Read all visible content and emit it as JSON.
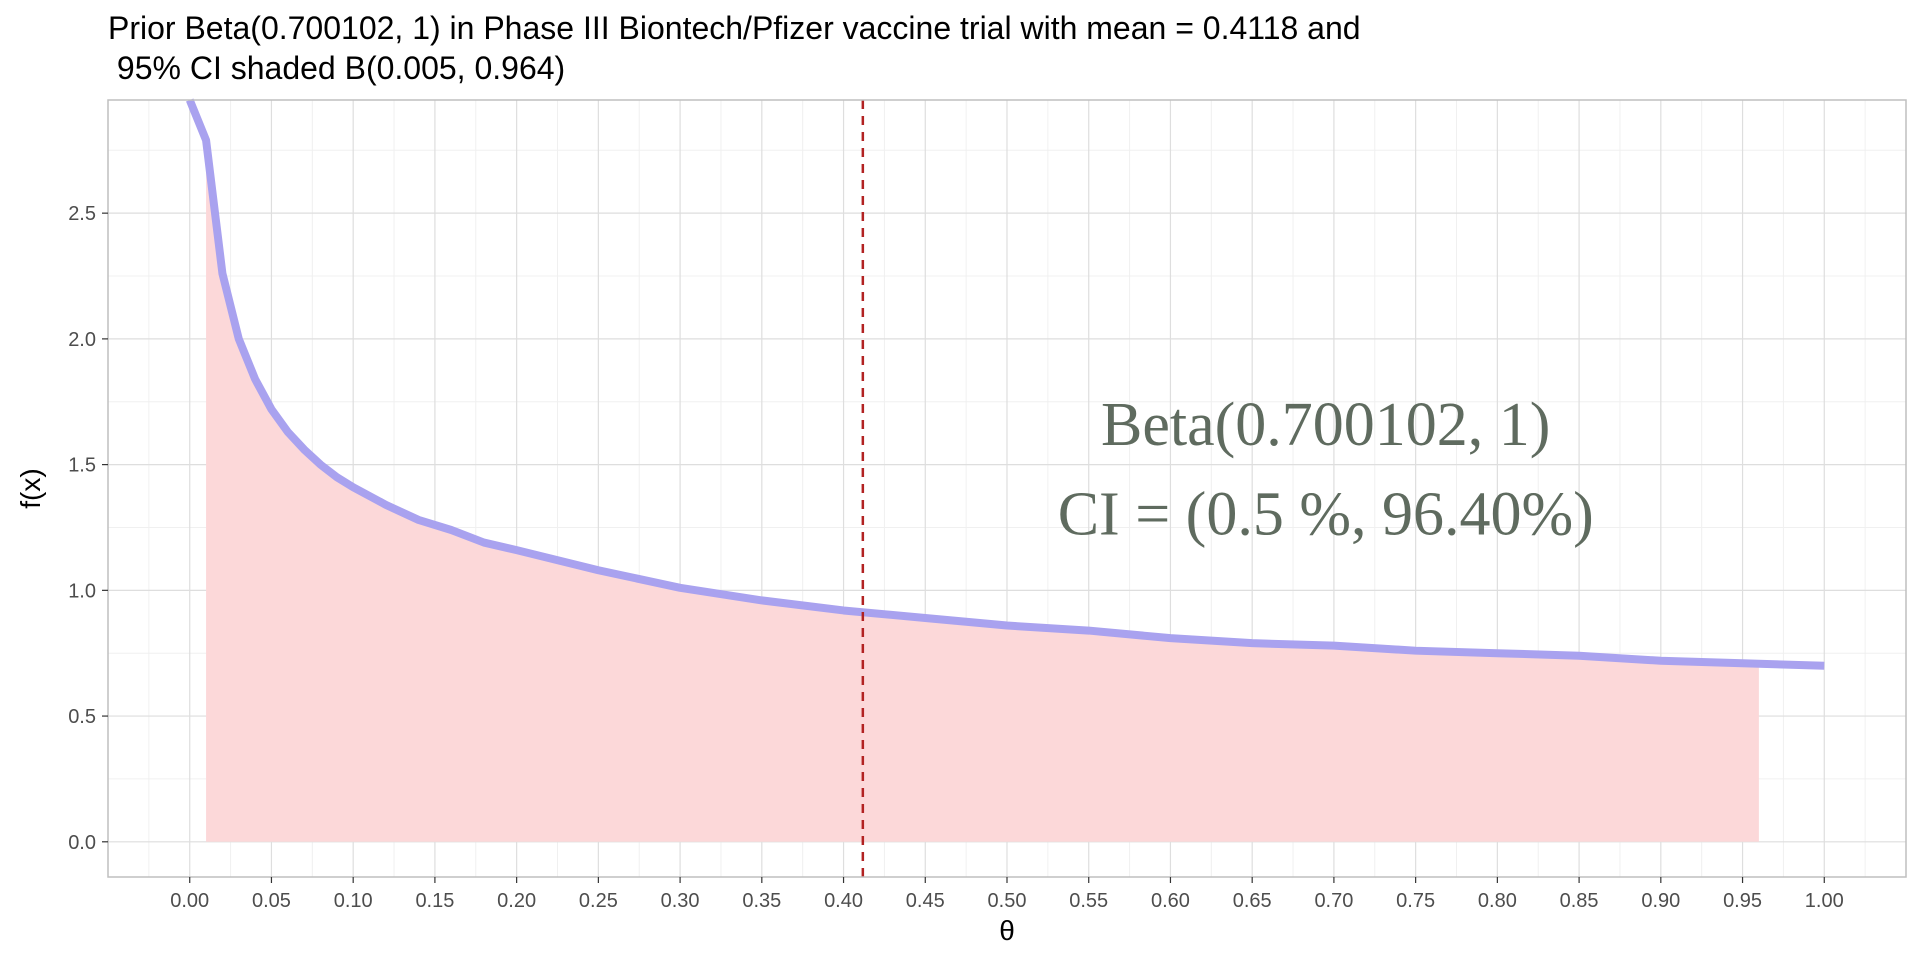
{
  "chart_data": {
    "type": "line",
    "title_line1": "Prior Beta(0.700102, 1) in Phase III Biontech/Pfizer vaccine trial with mean = 0.4118 and",
    "title_line2": " 95% CI shaded B(0.005, 0.964)",
    "xlabel": "θ",
    "ylabel": "f(x)",
    "xlim": [
      -0.05,
      1.05
    ],
    "ylim": [
      -0.14,
      2.95
    ],
    "x_ticks": [
      "0.00",
      "0.05",
      "0.10",
      "0.15",
      "0.20",
      "0.25",
      "0.30",
      "0.35",
      "0.40",
      "0.45",
      "0.50",
      "0.55",
      "0.60",
      "0.65",
      "0.70",
      "0.75",
      "0.80",
      "0.85",
      "0.90",
      "0.95",
      "1.00"
    ],
    "y_ticks": [
      "0.0",
      "0.5",
      "1.0",
      "1.5",
      "2.0",
      "2.5"
    ],
    "series": [
      {
        "color": "#a9a2ef",
        "x": [
          0.0,
          0.01,
          0.02,
          0.03,
          0.04,
          0.05,
          0.06,
          0.07,
          0.08,
          0.09,
          0.1,
          0.12,
          0.14,
          0.16,
          0.18,
          0.2,
          0.25,
          0.3,
          0.35,
          0.4,
          0.45,
          0.5,
          0.55,
          0.6,
          0.65,
          0.7,
          0.75,
          0.8,
          0.85,
          0.9,
          0.95,
          1.0
        ],
        "y": [
          2.95,
          2.79,
          2.26,
          2.0,
          1.84,
          1.72,
          1.63,
          1.56,
          1.5,
          1.45,
          1.41,
          1.34,
          1.28,
          1.24,
          1.19,
          1.16,
          1.08,
          1.01,
          0.96,
          0.92,
          0.89,
          0.86,
          0.84,
          0.81,
          0.79,
          0.78,
          0.76,
          0.75,
          0.74,
          0.72,
          0.71,
          0.7
        ]
      }
    ],
    "shaded_ci": {
      "from": 0.01,
      "to": 0.96,
      "color": "#fcd8d9"
    },
    "mean_line": {
      "x": 0.4118,
      "color": "#b22222",
      "style": "dashed"
    },
    "annotation_line1": "Beta(0.700102, 1)",
    "annotation_line2": "CI = (0.5 %, 96.40%)",
    "annotation_x": 0.695,
    "annotation_y1": 1.665,
    "annotation_y2": 1.31,
    "grid": true,
    "legend": "none"
  }
}
